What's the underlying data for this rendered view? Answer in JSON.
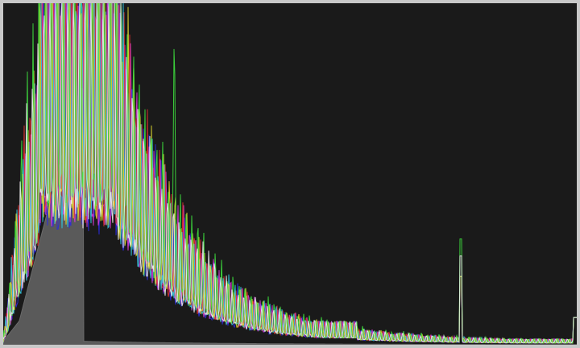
{
  "histogram": {
    "background_color": "#1a1a1a",
    "frame_color": "#c8c8c8",
    "levels": 256,
    "channels": [
      {
        "id": "luminance",
        "color": "#6a6a6a",
        "fill": "#5a5a5a",
        "mode": "filled"
      },
      {
        "id": "blue",
        "color": "#2b2bdc",
        "mode": "line"
      },
      {
        "id": "magenta",
        "color": "#d43cd4",
        "mode": "line"
      },
      {
        "id": "red",
        "color": "#e03030",
        "mode": "line"
      },
      {
        "id": "cyan",
        "color": "#30c8e0",
        "mode": "line"
      },
      {
        "id": "yellow",
        "color": "#e0d830",
        "mode": "line"
      },
      {
        "id": "green",
        "color": "#3ee03e",
        "mode": "line"
      },
      {
        "id": "white",
        "color": "#f0f0f0",
        "mode": "line"
      }
    ]
  }
}
